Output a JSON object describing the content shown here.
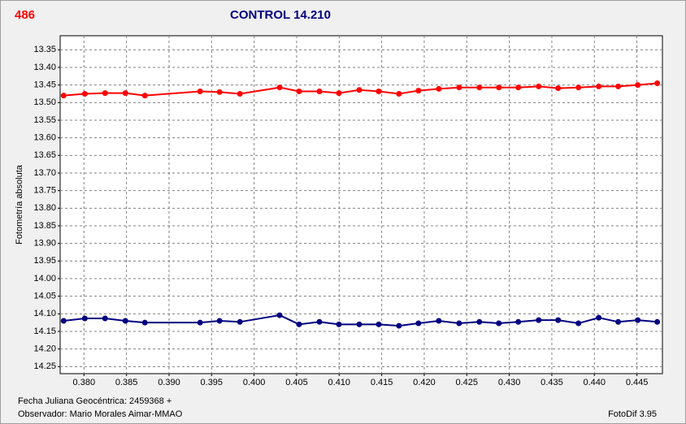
{
  "chart_data": {
    "type": "line",
    "badge": "486",
    "title": "CONTROL 14.210",
    "y_label": "Fotometría absoluta",
    "x_label": "Fecha Juliana Geocéntrica: 2459368 +",
    "observer": "Observador: Mario Morales Aimar-MMAO",
    "software": "FotoDif 3.95",
    "y_inverted": true,
    "grid": true,
    "xlim": [
      0.3772,
      0.448
    ],
    "ylim": [
      13.31,
      14.27
    ],
    "xticks": [
      {
        "value": 0.38,
        "label": "0.380"
      },
      {
        "value": 0.385,
        "label": "0.385"
      },
      {
        "value": 0.39,
        "label": "0.390"
      },
      {
        "value": 0.395,
        "label": "0.395"
      },
      {
        "value": 0.4,
        "label": "0.400"
      },
      {
        "value": 0.405,
        "label": "0.405"
      },
      {
        "value": 0.41,
        "label": "0.410"
      },
      {
        "value": 0.415,
        "label": "0.415"
      },
      {
        "value": 0.42,
        "label": "0.420"
      },
      {
        "value": 0.425,
        "label": "0.425"
      },
      {
        "value": 0.43,
        "label": "0.430"
      },
      {
        "value": 0.435,
        "label": "0.435"
      },
      {
        "value": 0.44,
        "label": "0.440"
      },
      {
        "value": 0.445,
        "label": "0.445"
      }
    ],
    "yticks": [
      13.35,
      {
        "value": 13.4,
        "label": "13.40"
      },
      13.45,
      {
        "value": 13.5,
        "label": "13.50"
      },
      13.55,
      {
        "value": 13.6,
        "label": "13.60"
      },
      13.65,
      {
        "value": 13.7,
        "label": "13.70"
      },
      13.75,
      {
        "value": 13.8,
        "label": "13.80"
      },
      13.85,
      {
        "value": 13.9,
        "label": "13.90"
      },
      13.95,
      {
        "value": 14.0,
        "label": "14.00"
      },
      14.05,
      {
        "value": 14.1,
        "label": "14.10"
      },
      14.15,
      {
        "value": 14.2,
        "label": "14.20"
      },
      14.25
    ],
    "x": [
      0.37761,
      0.3801,
      0.38248,
      0.38487,
      0.38716,
      0.39365,
      0.39594,
      0.39833,
      0.403,
      0.40529,
      0.40768,
      0.40997,
      0.41236,
      0.41465,
      0.41703,
      0.41932,
      0.42171,
      0.4241,
      0.42648,
      0.42877,
      0.43106,
      0.43345,
      0.43574,
      0.43813,
      0.44051,
      0.4428,
      0.4451,
      0.44739
    ],
    "series": [
      {
        "color": "#ff0000",
        "values": [
          13.48,
          13.475,
          13.473,
          13.473,
          13.48,
          13.468,
          13.47,
          13.475,
          13.457,
          13.468,
          13.468,
          13.473,
          13.464,
          13.468,
          13.475,
          13.466,
          13.461,
          13.457,
          13.457,
          13.457,
          13.457,
          13.454,
          13.459,
          13.457,
          13.454,
          13.454,
          13.45,
          13.445
        ]
      },
      {
        "color": "#000080",
        "values": [
          14.12,
          14.113,
          14.113,
          14.12,
          14.125,
          14.125,
          14.12,
          14.123,
          14.104,
          14.13,
          14.123,
          14.13,
          14.13,
          14.13,
          14.134,
          14.127,
          14.12,
          14.127,
          14.123,
          14.127,
          14.123,
          14.118,
          14.118,
          14.127,
          14.111,
          14.123,
          14.118,
          14.123
        ]
      }
    ]
  }
}
